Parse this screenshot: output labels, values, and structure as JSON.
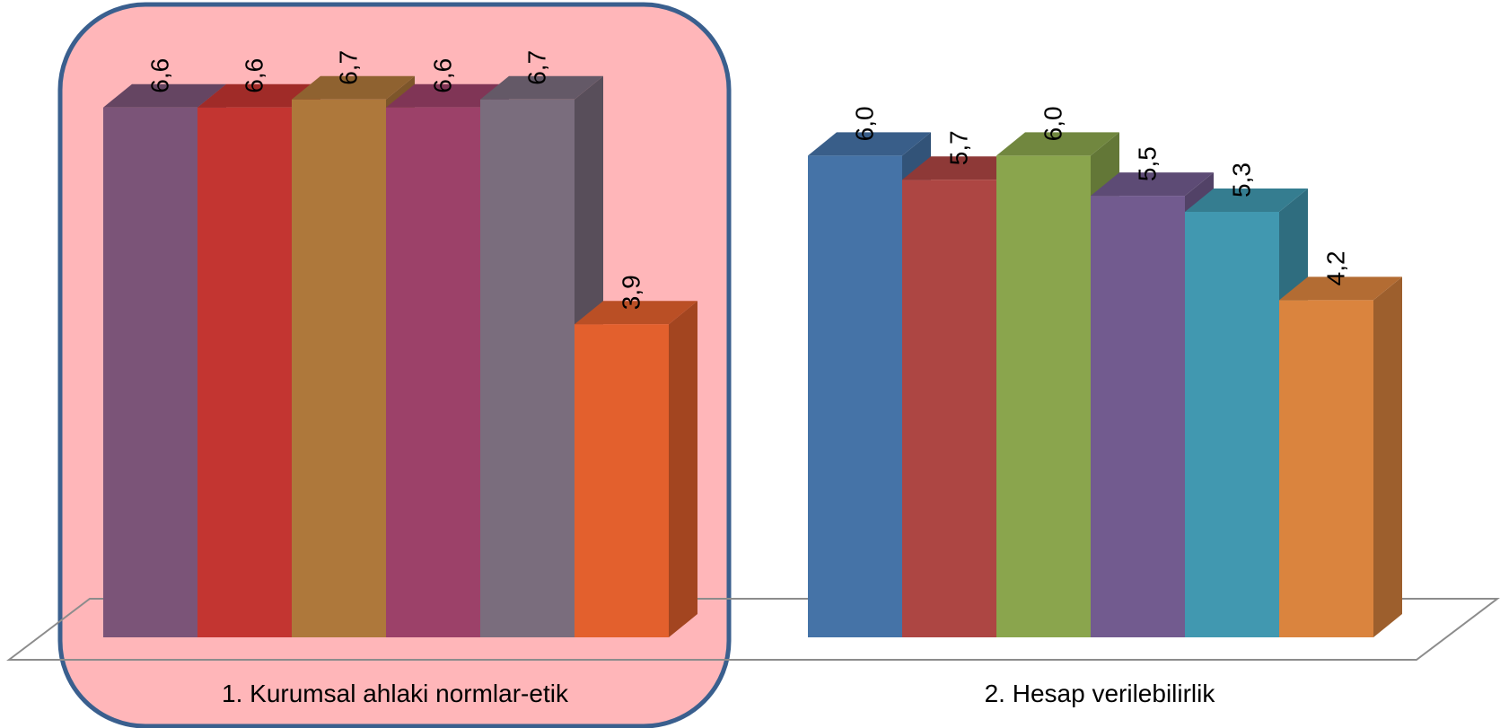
{
  "chart_data": {
    "type": "bar",
    "categories": [
      "1. Kurumsal ahlaki normlar-etik",
      "2. Hesap verilebilirlik"
    ],
    "series": [
      {
        "values": [
          6.6,
          6.0
        ]
      },
      {
        "values": [
          6.6,
          5.7
        ]
      },
      {
        "values": [
          6.7,
          6.0
        ]
      },
      {
        "values": [
          6.6,
          5.5
        ]
      },
      {
        "values": [
          6.7,
          5.3
        ]
      },
      {
        "values": [
          3.9,
          4.2
        ]
      }
    ],
    "value_labels": [
      [
        "6,6",
        "6,6",
        "6,7",
        "6,6",
        "6,7",
        "3,9"
      ],
      [
        "6,0",
        "5,7",
        "6,0",
        "5,5",
        "5,3",
        "4,2"
      ]
    ],
    "colors": [
      [
        "#7b5478",
        "#c33531",
        "#ae783b",
        "#9c4169",
        "#7a6d7d",
        "#e3602d"
      ],
      [
        "#4573a7",
        "#ad4643",
        "#8aa54d",
        "#725b8f",
        "#4198b0",
        "#da843e"
      ]
    ],
    "highlight": {
      "category_index": 0,
      "fill": "#ffb6b9",
      "stroke": "#3a5f8e"
    },
    "ylim": [
      0,
      7.1
    ],
    "style": "3d-column",
    "grid": false,
    "legend": "none",
    "title": "",
    "xlabel": "",
    "ylabel": ""
  }
}
